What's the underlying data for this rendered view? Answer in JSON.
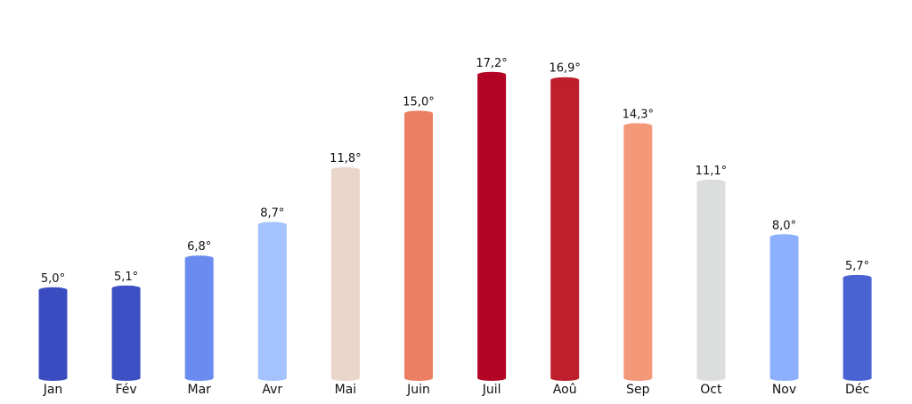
{
  "chart_data": {
    "type": "bar",
    "title": "",
    "xlabel": "",
    "ylabel": "",
    "ylim": [
      0,
      18.5
    ],
    "grid": false,
    "legend": "none",
    "categories": [
      "Jan",
      "Fév",
      "Mar",
      "Avr",
      "Mai",
      "Juin",
      "Juil",
      "Aoû",
      "Sep",
      "Oct",
      "Nov",
      "Déc"
    ],
    "values": [
      5.0,
      5.1,
      6.8,
      8.7,
      11.8,
      15.0,
      17.2,
      16.9,
      14.3,
      11.1,
      8.0,
      5.7
    ],
    "data_labels": [
      "5,0°",
      "5,1°",
      "6,8°",
      "8,7°",
      "11,8°",
      "15,0°",
      "17,2°",
      "16,9°",
      "14,3°",
      "11,1°",
      "8,0°",
      "5,7°"
    ],
    "colors": [
      "#3b4cc0",
      "#3d50c3",
      "#6a8bef",
      "#a3c2fe",
      "#ead5c9",
      "#ec7f63",
      "#b40426",
      "#be1f2c",
      "#f4987a",
      "#dcdddd",
      "#8caffe",
      "#4a63d3"
    ]
  }
}
